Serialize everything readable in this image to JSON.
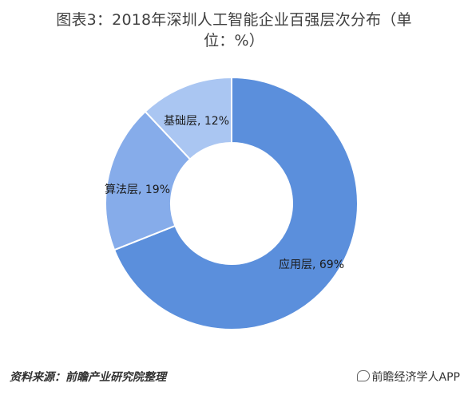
{
  "header": {
    "title_line1": "图表3：2018年深圳人工智能企业百强层次分布（单",
    "title_line2": "位：%）"
  },
  "chart_data": {
    "type": "pie",
    "style": "donut",
    "title": "图表3：2018年深圳人工智能企业百强层次分布（单位：%）",
    "unit": "%",
    "slices": [
      {
        "name": "应用层",
        "value": 69,
        "label": "应用层, 69%",
        "color": "#5b8fdc"
      },
      {
        "name": "算法层",
        "value": 19,
        "label": "算法层, 19%",
        "color": "#86acea"
      },
      {
        "name": "基础层",
        "value": 12,
        "label": "基础层, 12%",
        "color": "#aac6f2"
      }
    ],
    "legend": "none"
  },
  "footer": {
    "source": "资料来源：前瞻产业研究院整理",
    "brand": "前瞻经济学人APP"
  }
}
